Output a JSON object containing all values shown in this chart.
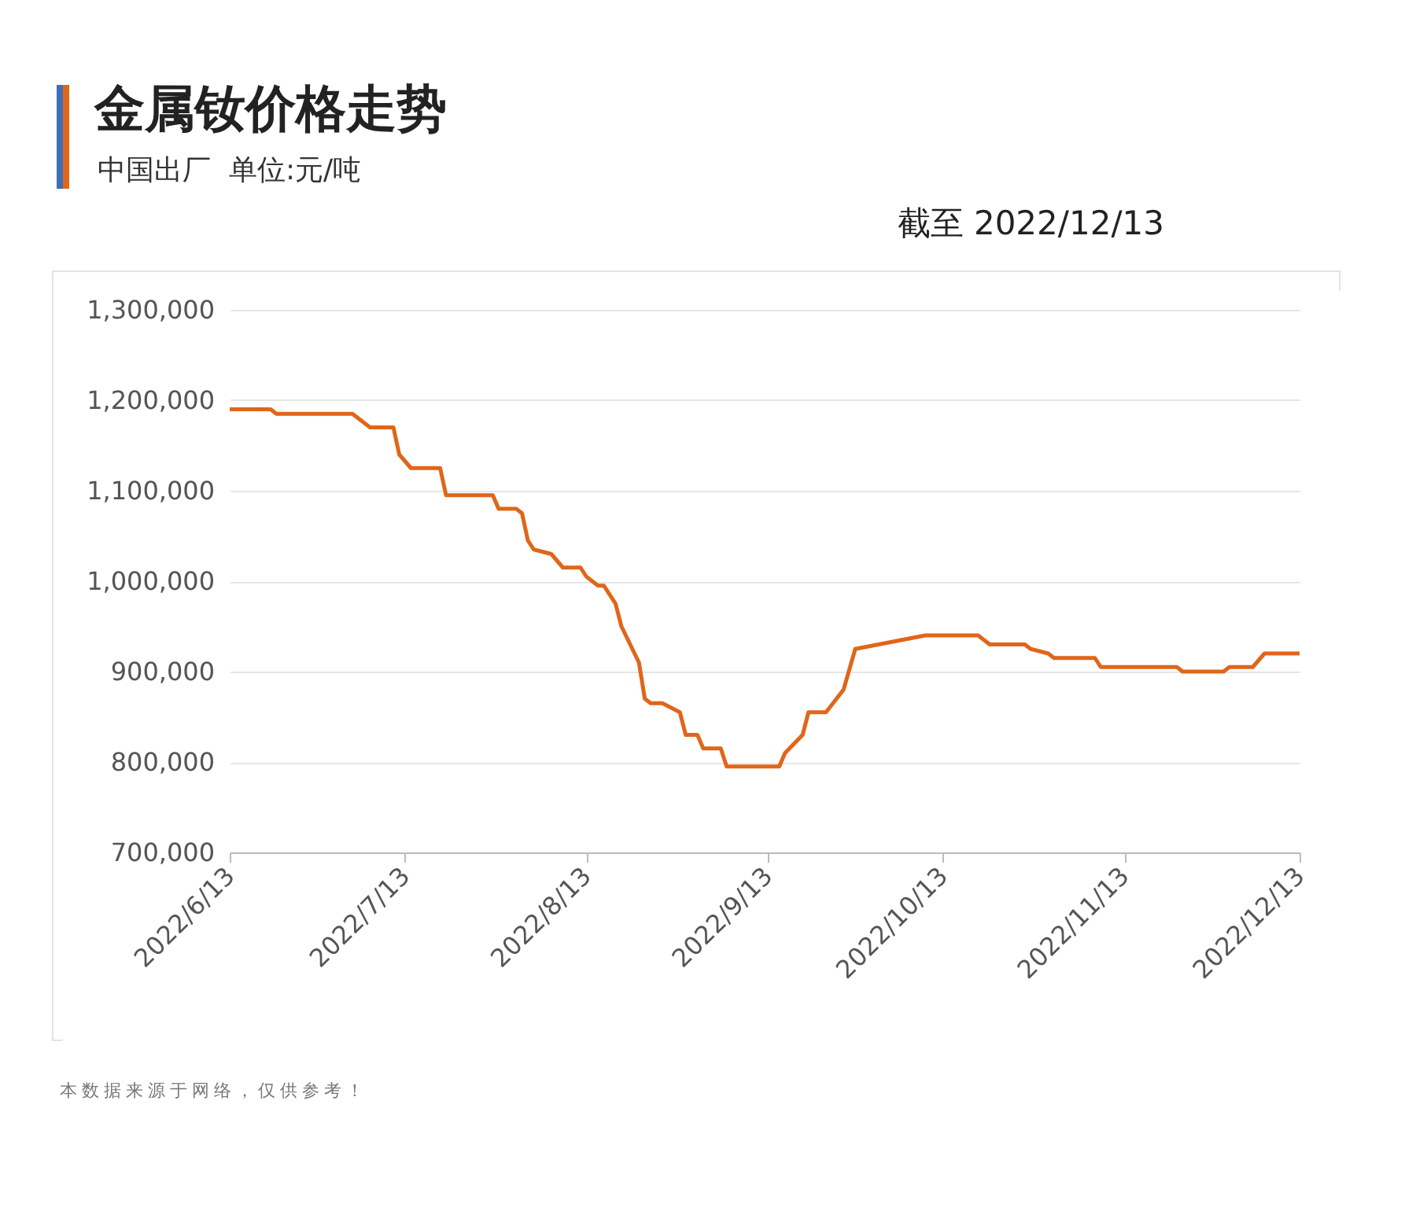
{
  "chart_data": {
    "type": "line",
    "title": "金属钕价格走势",
    "subtitle": "中国出厂  单位:元/吨",
    "annotations": [
      "截至 2022/12/13",
      "本数据来源于网络，仅供参考！"
    ],
    "x": [
      "2022-06-13",
      "2022-06-20",
      "2022-06-21",
      "2022-07-04",
      "2022-07-07",
      "2022-07-11",
      "2022-07-12",
      "2022-07-14",
      "2022-07-19",
      "2022-07-20",
      "2022-07-28",
      "2022-07-29",
      "2022-08-01",
      "2022-08-02",
      "2022-08-03",
      "2022-08-04",
      "2022-08-07",
      "2022-08-09",
      "2022-08-12",
      "2022-08-13",
      "2022-08-15",
      "2022-08-16",
      "2022-08-18",
      "2022-08-19",
      "2022-08-22",
      "2022-08-23",
      "2022-08-24",
      "2022-08-26",
      "2022-08-29",
      "2022-08-30",
      "2022-09-01",
      "2022-09-02",
      "2022-09-05",
      "2022-09-06",
      "2022-09-15",
      "2022-09-16",
      "2022-09-19",
      "2022-09-20",
      "2022-09-23",
      "2022-09-26",
      "2022-09-28",
      "2022-10-10",
      "2022-10-19",
      "2022-10-21",
      "2022-10-27",
      "2022-10-28",
      "2022-10-31",
      "2022-11-01",
      "2022-11-08",
      "2022-11-09",
      "2022-11-22",
      "2022-11-23",
      "2022-11-30",
      "2022-12-01",
      "2022-12-05",
      "2022-12-07",
      "2022-12-13"
    ],
    "series": [
      {
        "color": "#e0661a",
        "values": [
          1190000,
          1190000,
          1185000,
          1185000,
          1170000,
          1170000,
          1140000,
          1125000,
          1125000,
          1095000,
          1095000,
          1080000,
          1080000,
          1075000,
          1045000,
          1035000,
          1030000,
          1015000,
          1015000,
          1005000,
          995000,
          995000,
          975000,
          950000,
          910000,
          870000,
          865000,
          865000,
          855000,
          830000,
          830000,
          815000,
          815000,
          795000,
          795000,
          810000,
          830000,
          855000,
          855000,
          880000,
          925000,
          940000,
          940000,
          930000,
          930000,
          925000,
          920000,
          915000,
          915000,
          905000,
          905000,
          900000,
          900000,
          905000,
          905000,
          920000,
          920000
        ]
      }
    ],
    "xlim": [
      "2022-06-13",
      "2022-12-13"
    ],
    "xticks": [
      {
        "value": "2022-06-13",
        "label": "2022/6/13"
      },
      {
        "value": "2022-07-13",
        "label": "2022/7/13"
      },
      {
        "value": "2022-08-13",
        "label": "2022/8/13"
      },
      {
        "value": "2022-09-13",
        "label": "2022/9/13"
      },
      {
        "value": "2022-10-13",
        "label": "2022/10/13"
      },
      {
        "value": "2022-11-13",
        "label": "2022/11/13"
      },
      {
        "value": "2022-12-13",
        "label": "2022/12/13"
      }
    ],
    "ylim": [
      700000,
      1300000
    ],
    "yticks": [
      {
        "value": 700000,
        "label": "700,000"
      },
      {
        "value": 800000,
        "label": "800,000"
      },
      {
        "value": 900000,
        "label": "900,000"
      },
      {
        "value": 1000000,
        "label": "1,000,000"
      },
      {
        "value": 1100000,
        "label": "1,100,000"
      },
      {
        "value": 1200000,
        "label": "1,200,000"
      },
      {
        "value": 1300000,
        "label": "1,300,000"
      }
    ],
    "grid": "y",
    "marker": "none",
    "line_style": "solid"
  }
}
